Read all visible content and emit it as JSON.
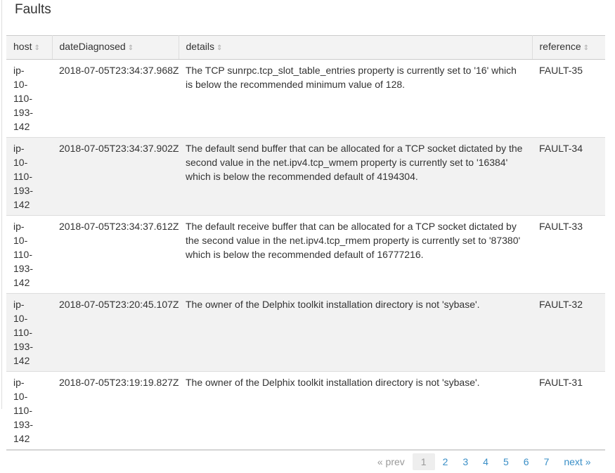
{
  "title": "Faults",
  "columns": [
    "host",
    "dateDiagnosed",
    "details",
    "reference"
  ],
  "sort_icon": "sort-updown-icon",
  "rows": [
    {
      "host": "ip-10-110-193-142",
      "date": "2018-07-05T23:34:37.968Z",
      "details": "The TCP sunrpc.tcp_slot_table_entries property is currently set to '16' which is below the recommended minimum value of 128.",
      "reference": "FAULT-35"
    },
    {
      "host": "ip-10-110-193-142",
      "date": "2018-07-05T23:34:37.902Z",
      "details": "The default send buffer that can be allocated for a TCP socket dictated by the second value in the net.ipv4.tcp_wmem property is currently set to '16384' which is below the recommended default of 4194304.",
      "reference": "FAULT-34"
    },
    {
      "host": "ip-10-110-193-142",
      "date": "2018-07-05T23:34:37.612Z",
      "details": "The default receive buffer that can be allocated for a TCP socket dictated by the second value in the net.ipv4.tcp_rmem property is currently set to '87380' which is below the recommended default of 16777216.",
      "reference": "FAULT-33"
    },
    {
      "host": "ip-10-110-193-142",
      "date": "2018-07-05T23:20:45.107Z",
      "details": "The owner of the Delphix toolkit installation directory is not 'sybase'.",
      "reference": "FAULT-32"
    },
    {
      "host": "ip-10-110-193-142",
      "date": "2018-07-05T23:19:19.827Z",
      "details": "The owner of the Delphix toolkit installation directory is not 'sybase'.",
      "reference": "FAULT-31"
    }
  ],
  "pager": {
    "prev": "« prev",
    "pages": [
      "1",
      "2",
      "3",
      "4",
      "5",
      "6",
      "7"
    ],
    "current": "1",
    "next": "next »"
  },
  "colors": {
    "link": "#3a8fc7",
    "row_alt": "#f2f2f2"
  }
}
